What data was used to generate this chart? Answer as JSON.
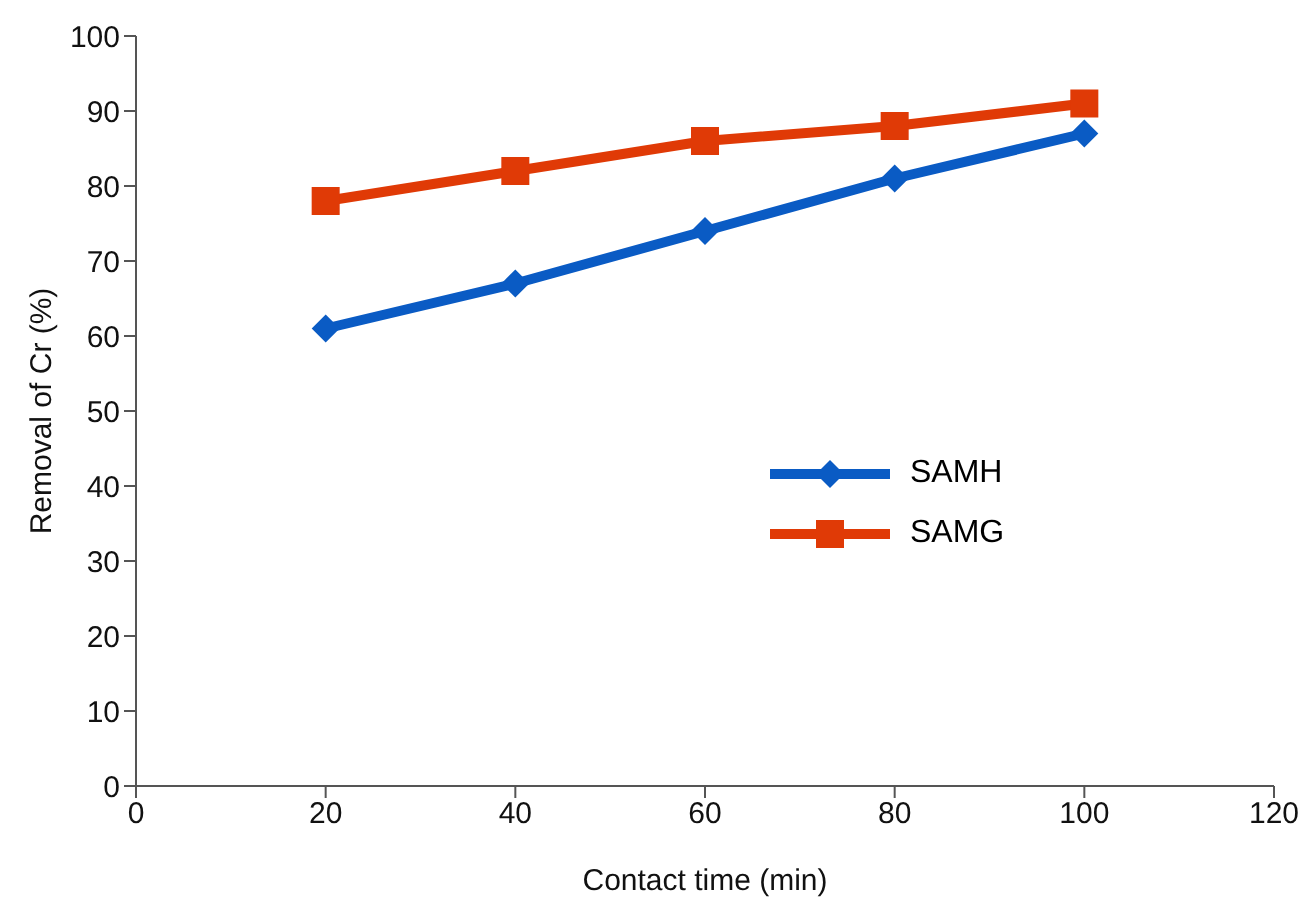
{
  "chart_data": {
    "type": "line",
    "xlabel": "Contact time (min)",
    "ylabel": "Removal of Cr (%)",
    "x": [
      20,
      40,
      60,
      80,
      100
    ],
    "series": [
      {
        "name": "SAMH",
        "color": "#0a5bc4",
        "values": [
          61,
          67,
          74,
          81,
          87
        ],
        "marker": "diamond"
      },
      {
        "name": "SAMG",
        "color": "#e03a06",
        "values": [
          78,
          82,
          86,
          88,
          91
        ],
        "marker": "square"
      }
    ],
    "xlim": [
      0,
      120
    ],
    "xticks": [
      0,
      20,
      40,
      60,
      80,
      100,
      120
    ],
    "ylim": [
      0,
      100
    ],
    "yticks": [
      0,
      10,
      20,
      30,
      40,
      50,
      60,
      70,
      80,
      90,
      100
    ],
    "grid": false,
    "legend": "right"
  }
}
